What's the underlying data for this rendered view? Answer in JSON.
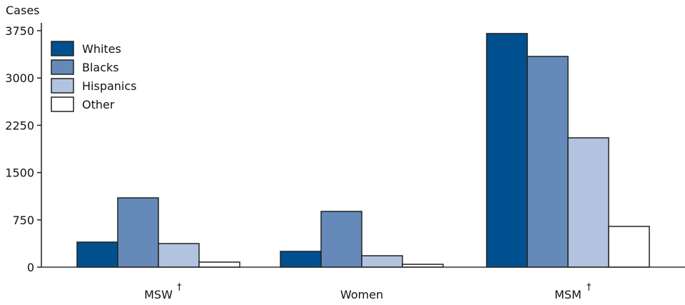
{
  "chart_data": {
    "type": "bar",
    "title": "",
    "ylabel": "Cases",
    "xlabel": "",
    "ylim": [
      0,
      3750
    ],
    "yticks": [
      "0",
      "750",
      "1500",
      "2250",
      "3000",
      "3750"
    ],
    "ytick_values": [
      0,
      750,
      1500,
      2250,
      3000,
      3750
    ],
    "categories": [
      "MSW",
      "Women",
      "MSM"
    ],
    "category_marks": [
      "†",
      "",
      "†"
    ],
    "legend_position": "top-left",
    "series": [
      {
        "name": "Whites",
        "color": "#00508f",
        "values": [
          397,
          250,
          3705
        ]
      },
      {
        "name": "Blacks",
        "color": "#658ab9",
        "values": [
          1099,
          884,
          3342
        ]
      },
      {
        "name": "Hispanics",
        "color": "#b2c3df",
        "values": [
          374,
          181,
          2051
        ]
      },
      {
        "name": "Other",
        "color": "#ffffff",
        "values": [
          80,
          45,
          646
        ]
      }
    ]
  }
}
